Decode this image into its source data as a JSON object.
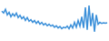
{
  "chart_data": {
    "type": "line",
    "color": "#3a8fd9",
    "tick_labels": false,
    "ylim": [
      0,
      100
    ],
    "values": [
      75,
      70,
      80,
      65,
      72,
      60,
      68,
      62,
      70,
      58,
      64,
      55,
      60,
      50,
      58,
      48,
      52,
      45,
      50,
      42,
      48,
      40,
      45,
      38,
      42,
      36,
      40,
      35,
      38,
      32,
      36,
      30,
      34,
      28,
      32,
      30,
      35,
      28,
      38,
      30,
      45,
      32,
      50,
      35,
      60,
      30,
      85,
      25,
      90,
      35,
      70,
      20,
      65,
      40,
      45,
      42,
      44,
      43,
      44
    ]
  }
}
